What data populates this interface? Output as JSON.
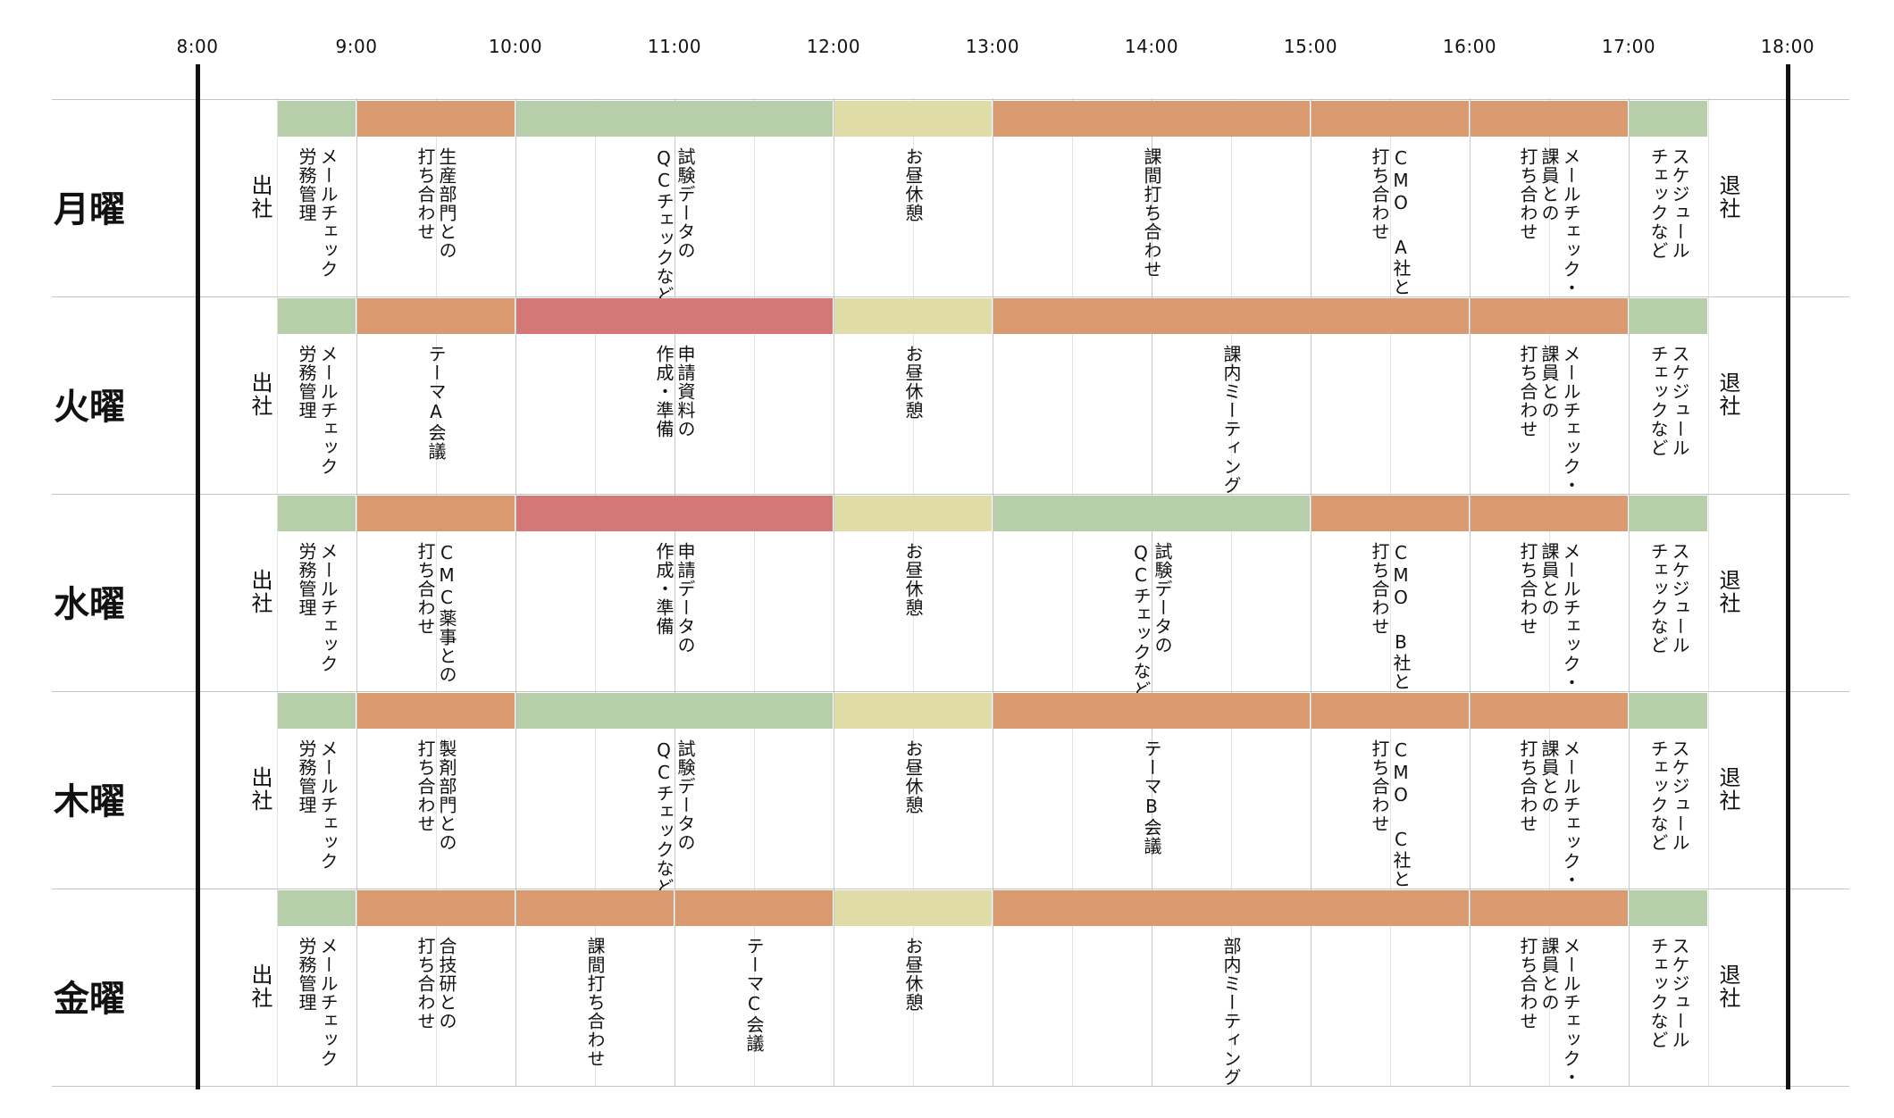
{
  "colors": {
    "green": "#b6cfaa",
    "orange": "#da9a70",
    "yellow": "#dfdca7",
    "red": "#d47777"
  },
  "hours": [
    "8:00",
    "9:00",
    "10:00",
    "11:00",
    "12:00",
    "13:00",
    "14:00",
    "15:00",
    "16:00",
    "17:00",
    "18:00"
  ],
  "start_label": "出社",
  "end_label": "退社",
  "days": [
    {
      "label": "月曜",
      "events": [
        {
          "start": 8.5,
          "end": 9.0,
          "color": "green",
          "lines": [
            "メールチェック",
            "労務管理"
          ]
        },
        {
          "start": 9.0,
          "end": 10.0,
          "color": "orange",
          "lines": [
            "生産部門との",
            "打ち合わせ"
          ]
        },
        {
          "start": 10.0,
          "end": 12.0,
          "color": "green",
          "lines": [
            "試験データの",
            "QCチェックなど"
          ]
        },
        {
          "start": 12.0,
          "end": 13.0,
          "color": "yellow",
          "lines": [
            "お昼休憩"
          ]
        },
        {
          "start": 13.0,
          "end": 15.0,
          "color": "orange",
          "lines": [
            "課間打ち合わせ"
          ]
        },
        {
          "start": 15.0,
          "end": 16.0,
          "color": "orange",
          "lines": [
            "CMO A社との",
            "打ち合わせ"
          ]
        },
        {
          "start": 16.0,
          "end": 17.0,
          "color": "orange",
          "lines": [
            "メールチェック・",
            "課員との",
            "打ち合わせ"
          ]
        },
        {
          "start": 17.0,
          "end": 17.5,
          "color": "green",
          "lines": [
            "スケジュール",
            "チェックなど"
          ]
        }
      ]
    },
    {
      "label": "火曜",
      "events": [
        {
          "start": 8.5,
          "end": 9.0,
          "color": "green",
          "lines": [
            "メールチェック",
            "労務管理"
          ]
        },
        {
          "start": 9.0,
          "end": 10.0,
          "color": "orange",
          "lines": [
            "テーマA会議"
          ]
        },
        {
          "start": 10.0,
          "end": 12.0,
          "color": "red",
          "lines": [
            "申請資料の",
            "作成・準備"
          ]
        },
        {
          "start": 12.0,
          "end": 13.0,
          "color": "yellow",
          "lines": [
            "お昼休憩"
          ]
        },
        {
          "start": 13.0,
          "end": 16.0,
          "color": "orange",
          "lines": [
            "課内ミーティング"
          ]
        },
        {
          "start": 16.0,
          "end": 17.0,
          "color": "orange",
          "lines": [
            "メールチェック・",
            "課員との",
            "打ち合わせ"
          ]
        },
        {
          "start": 17.0,
          "end": 17.5,
          "color": "green",
          "lines": [
            "スケジュール",
            "チェックなど"
          ]
        }
      ]
    },
    {
      "label": "水曜",
      "events": [
        {
          "start": 8.5,
          "end": 9.0,
          "color": "green",
          "lines": [
            "メールチェック",
            "労務管理"
          ]
        },
        {
          "start": 9.0,
          "end": 10.0,
          "color": "orange",
          "lines": [
            "CMC薬事との",
            "打ち合わせ"
          ]
        },
        {
          "start": 10.0,
          "end": 12.0,
          "color": "red",
          "lines": [
            "申請データの",
            "作成・準備"
          ]
        },
        {
          "start": 12.0,
          "end": 13.0,
          "color": "yellow",
          "lines": [
            "お昼休憩"
          ]
        },
        {
          "start": 13.0,
          "end": 15.0,
          "color": "green",
          "lines": [
            "試験データの",
            "QCチェックなど"
          ]
        },
        {
          "start": 15.0,
          "end": 16.0,
          "color": "orange",
          "lines": [
            "CMO B社との",
            "打ち合わせ"
          ]
        },
        {
          "start": 16.0,
          "end": 17.0,
          "color": "orange",
          "lines": [
            "メールチェック・",
            "課員との",
            "打ち合わせ"
          ]
        },
        {
          "start": 17.0,
          "end": 17.5,
          "color": "green",
          "lines": [
            "スケジュール",
            "チェックなど"
          ]
        }
      ]
    },
    {
      "label": "木曜",
      "events": [
        {
          "start": 8.5,
          "end": 9.0,
          "color": "green",
          "lines": [
            "メールチェック",
            "労務管理"
          ]
        },
        {
          "start": 9.0,
          "end": 10.0,
          "color": "orange",
          "lines": [
            "製剤部門との",
            "打ち合わせ"
          ]
        },
        {
          "start": 10.0,
          "end": 12.0,
          "color": "green",
          "lines": [
            "試験データの",
            "QCチェックなど"
          ]
        },
        {
          "start": 12.0,
          "end": 13.0,
          "color": "yellow",
          "lines": [
            "お昼休憩"
          ]
        },
        {
          "start": 13.0,
          "end": 15.0,
          "color": "orange",
          "lines": [
            "テーマB会議"
          ]
        },
        {
          "start": 15.0,
          "end": 16.0,
          "color": "orange",
          "lines": [
            "CMO C社との",
            "打ち合わせ"
          ]
        },
        {
          "start": 16.0,
          "end": 17.0,
          "color": "orange",
          "lines": [
            "メールチェック・",
            "課員との",
            "打ち合わせ"
          ]
        },
        {
          "start": 17.0,
          "end": 17.5,
          "color": "green",
          "lines": [
            "スケジュール",
            "チェックなど"
          ]
        }
      ]
    },
    {
      "label": "金曜",
      "events": [
        {
          "start": 8.5,
          "end": 9.0,
          "color": "green",
          "lines": [
            "メールチェック",
            "労務管理"
          ]
        },
        {
          "start": 9.0,
          "end": 10.0,
          "color": "orange",
          "lines": [
            "合技研との",
            "打ち合わせ"
          ]
        },
        {
          "start": 10.0,
          "end": 11.0,
          "color": "orange",
          "lines": [
            "課間打ち合わせ"
          ]
        },
        {
          "start": 11.0,
          "end": 12.0,
          "color": "orange",
          "lines": [
            "テーマC会議"
          ]
        },
        {
          "start": 12.0,
          "end": 13.0,
          "color": "yellow",
          "lines": [
            "お昼休憩"
          ]
        },
        {
          "start": 13.0,
          "end": 16.0,
          "color": "orange",
          "lines": [
            "部内ミーティング"
          ]
        },
        {
          "start": 16.0,
          "end": 17.0,
          "color": "orange",
          "lines": [
            "メールチェック・",
            "課員との",
            "打ち合わせ"
          ]
        },
        {
          "start": 17.0,
          "end": 17.5,
          "color": "green",
          "lines": [
            "スケジュール",
            "チェックなど"
          ]
        }
      ]
    }
  ]
}
